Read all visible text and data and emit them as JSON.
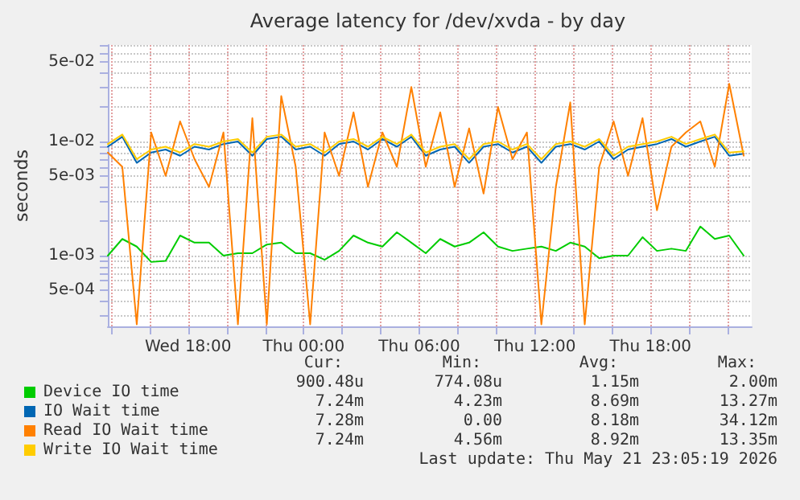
{
  "chart_data": {
    "type": "line",
    "title": "Average latency for /dev/xvda - by day",
    "ylabel": "seconds",
    "log": "y",
    "grid": true,
    "legend": "bottom left",
    "marker": "none",
    "line_style": "solid",
    "x": [
      "2026-05-20T13:50",
      "2026-05-20T14:35",
      "2026-05-20T15:20",
      "2026-05-20T16:05",
      "2026-05-20T16:50",
      "2026-05-20T17:35",
      "2026-05-20T18:20",
      "2026-05-20T19:05",
      "2026-05-20T19:50",
      "2026-05-20T20:35",
      "2026-05-20T21:20",
      "2026-05-20T22:05",
      "2026-05-20T22:50",
      "2026-05-20T23:35",
      "2026-05-21T00:20",
      "2026-05-21T01:05",
      "2026-05-21T01:50",
      "2026-05-21T02:35",
      "2026-05-21T03:20",
      "2026-05-21T04:05",
      "2026-05-21T04:50",
      "2026-05-21T05:35",
      "2026-05-21T06:20",
      "2026-05-21T07:05",
      "2026-05-21T07:50",
      "2026-05-21T08:35",
      "2026-05-21T09:20",
      "2026-05-21T10:05",
      "2026-05-21T10:50",
      "2026-05-21T11:35",
      "2026-05-21T12:20",
      "2026-05-21T13:05",
      "2026-05-21T13:50",
      "2026-05-21T14:35",
      "2026-05-21T15:20",
      "2026-05-21T16:05",
      "2026-05-21T16:50",
      "2026-05-21T17:35",
      "2026-05-21T18:20",
      "2026-05-21T19:05",
      "2026-05-21T19:50",
      "2026-05-21T20:35",
      "2026-05-21T21:20",
      "2026-05-21T22:05",
      "2026-05-21T22:50"
    ],
    "xlim": [
      "2026-05-20T13:50",
      "2026-05-21T23:15"
    ],
    "xticks": [
      {
        "value": "2026-05-20T14:00",
        "label": null
      },
      {
        "value": "2026-05-20T16:00",
        "label": null
      },
      {
        "value": "2026-05-20T18:00",
        "label": "Wed 18:00"
      },
      {
        "value": "2026-05-20T20:00",
        "label": null
      },
      {
        "value": "2026-05-20T22:00",
        "label": null
      },
      {
        "value": "2026-05-21T00:00",
        "label": "Thu 00:00"
      },
      {
        "value": "2026-05-21T02:00",
        "label": null
      },
      {
        "value": "2026-05-21T04:00",
        "label": null
      },
      {
        "value": "2026-05-21T06:00",
        "label": "Thu 06:00"
      },
      {
        "value": "2026-05-21T08:00",
        "label": null
      },
      {
        "value": "2026-05-21T10:00",
        "label": null
      },
      {
        "value": "2026-05-21T12:00",
        "label": "Thu 12:00"
      },
      {
        "value": "2026-05-21T14:00",
        "label": null
      },
      {
        "value": "2026-05-21T16:00",
        "label": null
      },
      {
        "value": "2026-05-21T18:00",
        "label": "Thu 18:00"
      },
      {
        "value": "2026-05-21T20:00",
        "label": null
      },
      {
        "value": "2026-05-21T22:00",
        "label": null
      }
    ],
    "ylim": [
      0.00024,
      0.07
    ],
    "yticks": [
      {
        "value": 0.0003,
        "label": null
      },
      {
        "value": 0.0004,
        "label": null
      },
      {
        "value": 0.0005,
        "label": "5e-04"
      },
      {
        "value": 0.0006,
        "label": null
      },
      {
        "value": 0.0007,
        "label": null
      },
      {
        "value": 0.0008,
        "label": null
      },
      {
        "value": 0.0009,
        "label": null
      },
      {
        "value": 0.001,
        "label": "1e-03"
      },
      {
        "value": 0.002,
        "label": null
      },
      {
        "value": 0.003,
        "label": null
      },
      {
        "value": 0.004,
        "label": null
      },
      {
        "value": 0.005,
        "label": "5e-03"
      },
      {
        "value": 0.006,
        "label": null
      },
      {
        "value": 0.007,
        "label": null
      },
      {
        "value": 0.008,
        "label": null
      },
      {
        "value": 0.009,
        "label": null
      },
      {
        "value": 0.01,
        "label": "1e-02"
      },
      {
        "value": 0.02,
        "label": null
      },
      {
        "value": 0.03,
        "label": null
      },
      {
        "value": 0.04,
        "label": null
      },
      {
        "value": 0.05,
        "label": "5e-02"
      },
      {
        "value": 0.06,
        "label": null
      },
      {
        "value": 0.07,
        "label": null
      }
    ],
    "series": [
      {
        "name": "Device IO time",
        "color": "#00cc00",
        "values": [
          0.001,
          0.0014,
          0.0012,
          0.00088,
          0.0009,
          0.0015,
          0.0013,
          0.0013,
          0.001,
          0.00105,
          0.00105,
          0.00125,
          0.0013,
          0.00105,
          0.00105,
          0.00092,
          0.0011,
          0.0015,
          0.0013,
          0.0012,
          0.0016,
          0.0013,
          0.00105,
          0.0014,
          0.0012,
          0.0013,
          0.0016,
          0.0012,
          0.0011,
          0.00115,
          0.0012,
          0.0011,
          0.0013,
          0.0012,
          0.00095,
          0.001,
          0.001,
          0.00145,
          0.0011,
          0.00115,
          0.0011,
          0.0018,
          0.0014,
          0.0015,
          0.001
        ]
      },
      {
        "name": "IO Wait time",
        "color": "#0066b3",
        "values": [
          0.009,
          0.011,
          0.0065,
          0.008,
          0.0085,
          0.0075,
          0.009,
          0.0085,
          0.0095,
          0.01,
          0.0075,
          0.0105,
          0.011,
          0.0085,
          0.009,
          0.0075,
          0.0095,
          0.01,
          0.0085,
          0.0105,
          0.009,
          0.011,
          0.0075,
          0.0085,
          0.009,
          0.0065,
          0.009,
          0.0095,
          0.008,
          0.009,
          0.0065,
          0.009,
          0.0095,
          0.0085,
          0.01,
          0.007,
          0.0085,
          0.009,
          0.0095,
          0.0105,
          0.009,
          0.01,
          0.011,
          0.0075,
          0.0078
        ]
      },
      {
        "name": "Read IO Wait time",
        "color": "#ff8000",
        "values": [
          0.008,
          0.006,
          0.00025,
          0.012,
          0.005,
          0.015,
          0.007,
          0.004,
          0.012,
          0.00025,
          0.016,
          0.00025,
          0.025,
          0.006,
          0.00025,
          0.012,
          0.005,
          0.018,
          0.004,
          0.012,
          0.006,
          0.03,
          0.006,
          0.018,
          0.004,
          0.013,
          0.0035,
          0.02,
          0.007,
          0.012,
          0.00025,
          0.004,
          0.022,
          0.00025,
          0.006,
          0.015,
          0.005,
          0.016,
          0.0025,
          0.009,
          0.012,
          0.015,
          0.006,
          0.032,
          0.0075
        ]
      },
      {
        "name": "Write IO Wait time",
        "color": "#ffcc00",
        "values": [
          0.0095,
          0.0115,
          0.007,
          0.0085,
          0.009,
          0.008,
          0.0095,
          0.009,
          0.01,
          0.0105,
          0.008,
          0.011,
          0.0115,
          0.009,
          0.0095,
          0.008,
          0.01,
          0.0105,
          0.009,
          0.011,
          0.0095,
          0.0115,
          0.008,
          0.009,
          0.0095,
          0.007,
          0.0095,
          0.01,
          0.0085,
          0.0095,
          0.007,
          0.0095,
          0.01,
          0.009,
          0.0105,
          0.0075,
          0.009,
          0.0095,
          0.01,
          0.011,
          0.0095,
          0.0105,
          0.0115,
          0.008,
          0.0082
        ]
      }
    ],
    "annotations": [
      "Cur:",
      "Min:",
      "Avg:",
      "Max:",
      "900.48u",
      "774.08u",
      "1.15m",
      "2.00m",
      "7.24m",
      "4.23m",
      "8.69m",
      "13.27m",
      "7.28m",
      "0.00",
      "8.18m",
      "34.12m",
      "7.24m",
      "4.56m",
      "8.92m",
      "13.35m",
      "Last update: Thu May 21 23:05:19 2026"
    ]
  }
}
